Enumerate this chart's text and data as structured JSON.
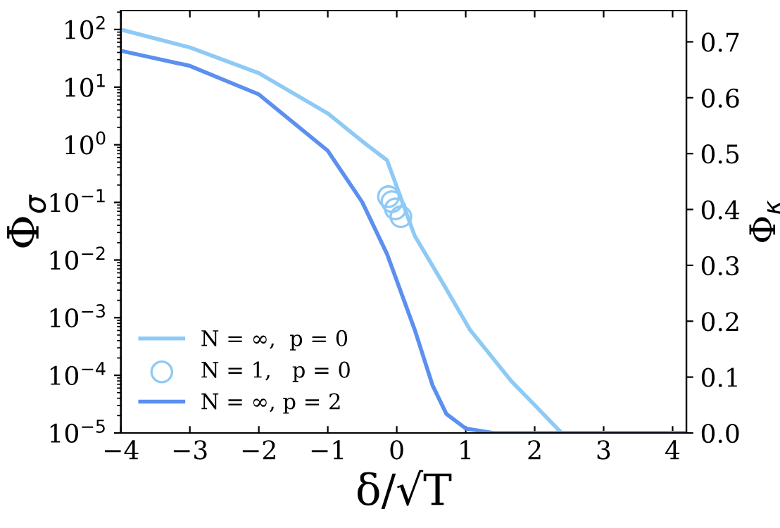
{
  "chart_data": {
    "type": "line",
    "xlabel": "δ/√T",
    "ylabel": "Φ$_{σ}$",
    "y2label": "Φ$_{κ}$",
    "xlim": [
      -4,
      4.2
    ],
    "xticks": [
      {
        "value": -4,
        "label": "−4"
      },
      {
        "value": -3,
        "label": "−3"
      },
      {
        "value": -2,
        "label": "−2"
      },
      {
        "value": -1,
        "label": "−1"
      },
      0,
      1,
      2,
      3,
      4
    ],
    "log": "y",
    "ylim": [
      1e-05,
      213
    ],
    "yticks": [
      {
        "value": 1e-05,
        "label": "10$^{−5}$"
      },
      {
        "value": 0.0001,
        "label": "10$^{−4}$"
      },
      {
        "value": 0.001,
        "label": "10$^{−3}$"
      },
      {
        "value": 0.01,
        "label": "10$^{−2}$"
      },
      {
        "value": 0.1,
        "label": "10$^{−1}$"
      },
      {
        "value": 1,
        "label": "10$^{0}$"
      },
      {
        "value": 10,
        "label": "10$^{1}$"
      },
      {
        "value": 100,
        "label": "10$^{2}$"
      }
    ],
    "y2lim": [
      0,
      0.756
    ],
    "y2ticks": [
      {
        "value": 0,
        "label": "0.0"
      },
      0.1,
      0.2,
      0.3,
      0.4,
      0.5,
      0.6,
      0.7
    ],
    "grid": false,
    "legend": "bottom left",
    "series": [
      {
        "name": "N = ∞,  p = 0",
        "axis": "y2",
        "color": "#8ecaf5",
        "marker": "none",
        "line_style": "solid",
        "x": [
          -4,
          -3,
          -2,
          -1,
          -0.5,
          -0.14,
          0.26,
          0.66,
          1.06,
          1.66,
          2.0,
          2.39,
          3,
          4.2
        ],
        "values": [
          0.722,
          0.69,
          0.644,
          0.572,
          0.522,
          0.488,
          0.353,
          0.27,
          0.185,
          0.093,
          0.05,
          0.0,
          0.0,
          0.0
        ]
      },
      {
        "name": "N = 1,   p = 0",
        "type": "scatter",
        "axis": "y2",
        "color": "#8ecaf5",
        "marker": "circle",
        "x": [
          -0.12,
          -0.07,
          -0.02,
          0.06
        ],
        "values": [
          0.423,
          0.414,
          0.401,
          0.387
        ]
      },
      {
        "name": "N = ∞, p = 2",
        "axis": "y2",
        "color": "#5b8ff0",
        "marker": "none",
        "line_style": "solid",
        "x": [
          -4,
          -3,
          -2,
          -1,
          -0.5,
          -0.14,
          0.26,
          0.52,
          0.72,
          1.0,
          1.4,
          2,
          3,
          4.2
        ],
        "values": [
          0.684,
          0.657,
          0.606,
          0.505,
          0.413,
          0.32,
          0.185,
          0.085,
          0.034,
          0.008,
          0.0,
          0.0,
          0.0,
          0.0
        ]
      }
    ]
  }
}
